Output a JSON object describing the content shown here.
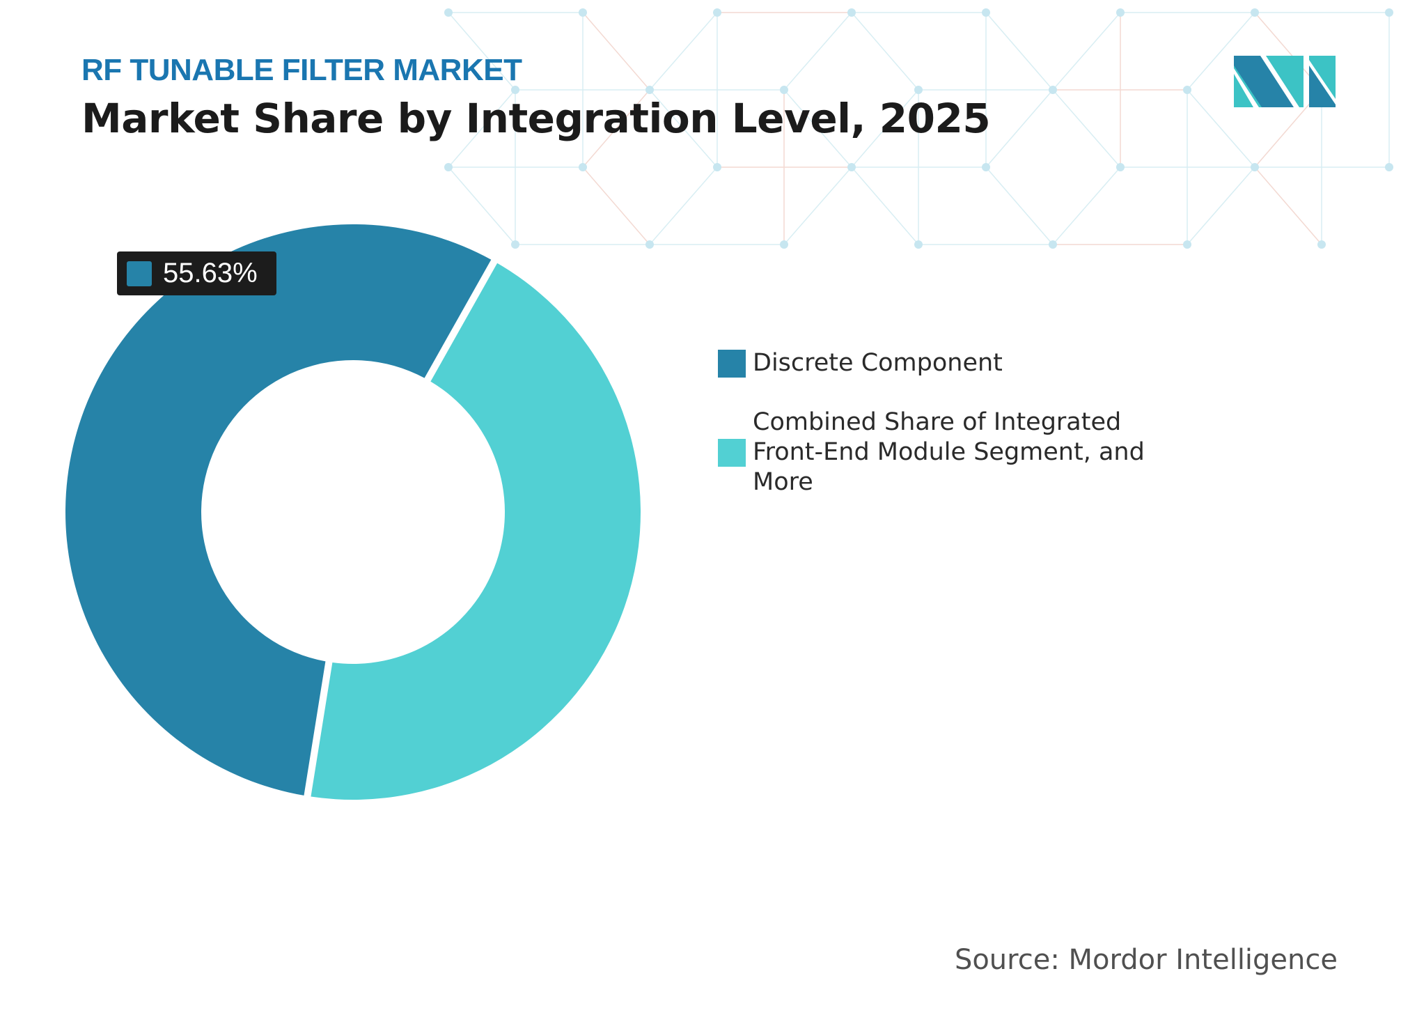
{
  "header": {
    "kicker": "RF TUNABLE FILTER MARKET",
    "title": "Market Share by Integration Level, 2025"
  },
  "chart_data": {
    "type": "pie",
    "variant": "donut",
    "categories": [
      "Discrete Component",
      "Combined Share of Integrated Front-End Module Segment, and More"
    ],
    "values": [
      55.63,
      44.37
    ],
    "colors": [
      "#2683a8",
      "#52d0d3"
    ],
    "data_labels": [
      {
        "category": "Discrete Component",
        "text": "55.63%"
      }
    ],
    "legend_position": "right"
  },
  "source": "Source: Mordor Intelligence",
  "logo": {
    "text": "Mordor Intelligence",
    "colors": [
      "#2683a8",
      "#3cc3c5"
    ]
  }
}
